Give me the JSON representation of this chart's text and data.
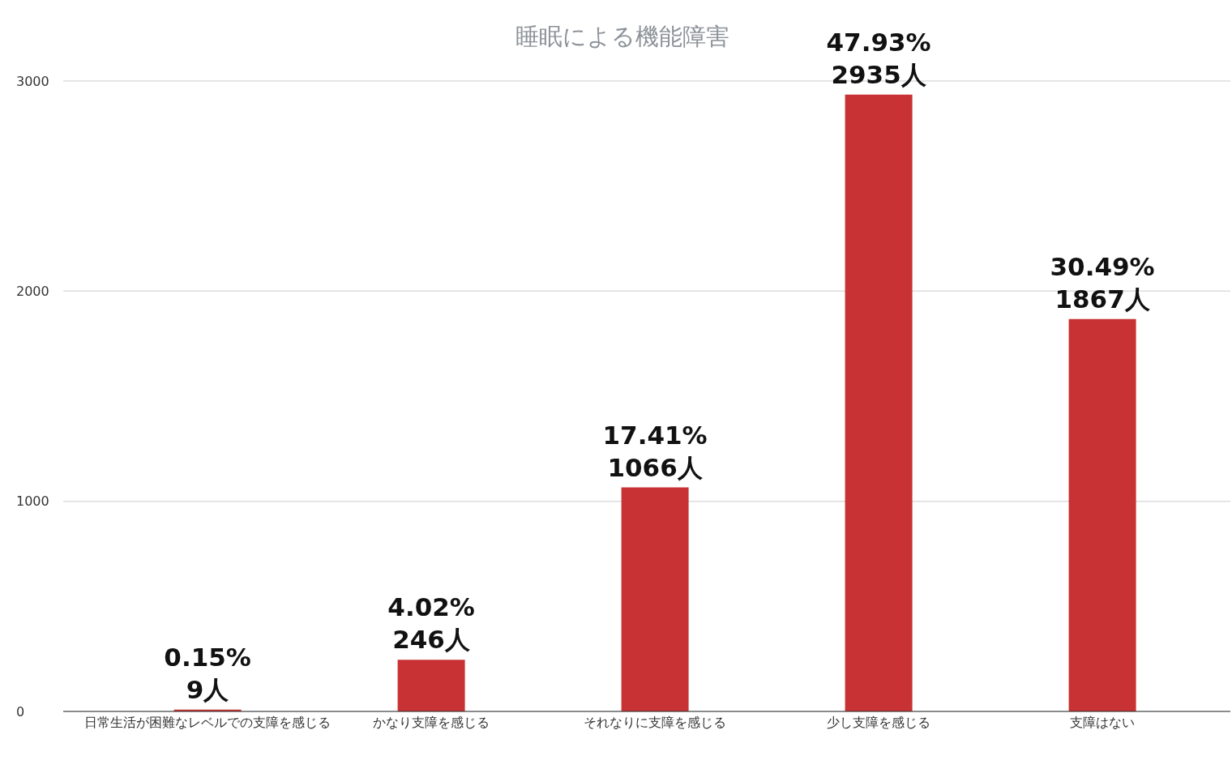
{
  "chart_data": {
    "type": "bar",
    "title": "睡眠による機能障害",
    "categories": [
      "日常生活が困難なレベルでの支障を感じる",
      "かなり支障を感じる",
      "それなりに支障を感じる",
      "少し支障を感じる",
      "支障はない"
    ],
    "values": [
      9,
      246,
      1066,
      2935,
      1867
    ],
    "value_labels": [
      "0.15%\n9人",
      "4.02%\n246人",
      "17.41%\n1066人",
      "47.93%\n2935人",
      "30.49%\n1867人"
    ],
    "color": "#c83234",
    "ylim": [
      0,
      3000
    ],
    "yticks": [
      0,
      1000,
      2000,
      3000
    ],
    "grid": "y",
    "legend": false
  }
}
